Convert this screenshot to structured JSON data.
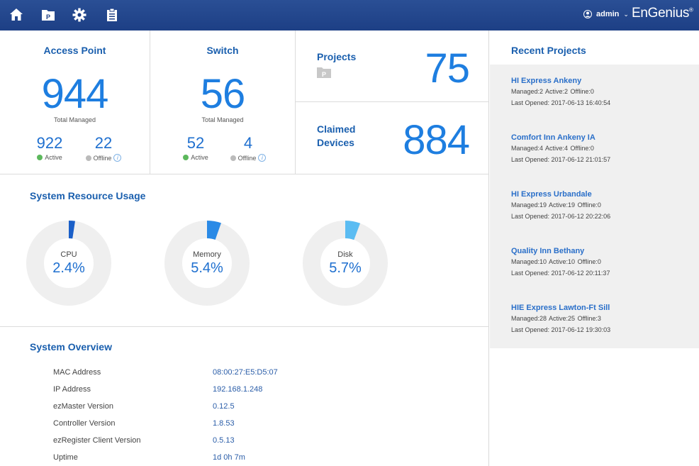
{
  "topbar": {
    "icons": [
      "home-icon",
      "project-icon",
      "gear-icon",
      "clipboard-icon"
    ],
    "user": "admin",
    "logo": "EnGenius"
  },
  "access_point": {
    "title": "Access Point",
    "total": "944",
    "total_label": "Total Managed",
    "active": "922",
    "active_label": "Active",
    "offline": "22",
    "offline_label": "Offline"
  },
  "switch": {
    "title": "Switch",
    "total": "56",
    "total_label": "Total Managed",
    "active": "52",
    "active_label": "Active",
    "offline": "4",
    "offline_label": "Offline"
  },
  "projects": {
    "label": "Projects",
    "value": "75"
  },
  "claimed": {
    "label_line1": "Claimed",
    "label_line2": "Devices",
    "value": "884"
  },
  "resources": {
    "title": "System Resource Usage",
    "items": [
      {
        "label": "CPU",
        "value": "2.4%",
        "fraction": 0.024,
        "color": "#1a5fc8"
      },
      {
        "label": "Memory",
        "value": "5.4%",
        "fraction": 0.054,
        "color": "#2a8ae6"
      },
      {
        "label": "Disk",
        "value": "5.7%",
        "fraction": 0.057,
        "color": "#5bbcf2"
      }
    ]
  },
  "overview": {
    "title": "System Overview",
    "rows": [
      {
        "key": "MAC Address",
        "value": "08:00:27:E5:D5:07"
      },
      {
        "key": "IP Address",
        "value": "192.168.1.248"
      },
      {
        "key": "ezMaster Version",
        "value": "0.12.5"
      },
      {
        "key": "Controller Version",
        "value": "1.8.53"
      },
      {
        "key": "ezRegister Client Version",
        "value": "0.5.13"
      },
      {
        "key": "Uptime",
        "value": "1d 0h 7m"
      }
    ]
  },
  "recent": {
    "title": "Recent Projects",
    "items": [
      {
        "name": "HI Express Ankeny",
        "stats": "Managed:2  Active:2  Offline:0",
        "opened": "Last Opened: 2017-06-13 16:40:54"
      },
      {
        "name": "Comfort Inn Ankeny IA",
        "stats": "Managed:4  Active:4  Offline:0",
        "opened": "Last Opened: 2017-06-12 21:01:57"
      },
      {
        "name": "HI Express Urbandale",
        "stats": "Managed:19  Active:19  Offline:0",
        "opened": "Last Opened: 2017-06-12 20:22:06"
      },
      {
        "name": "Quality Inn Bethany",
        "stats": "Managed:10  Active:10  Offline:0",
        "opened": "Last Opened: 2017-06-12 20:11:37"
      },
      {
        "name": "HIE Express Lawton-Ft Sill",
        "stats": "Managed:28  Active:25  Offline:3",
        "opened": "Last Opened: 2017-06-12 19:30:03"
      }
    ]
  },
  "colors": {
    "header": "#1d3f85",
    "accent": "#1e7ee0",
    "active": "#5cb85c",
    "offline": "#bbbbbb"
  }
}
